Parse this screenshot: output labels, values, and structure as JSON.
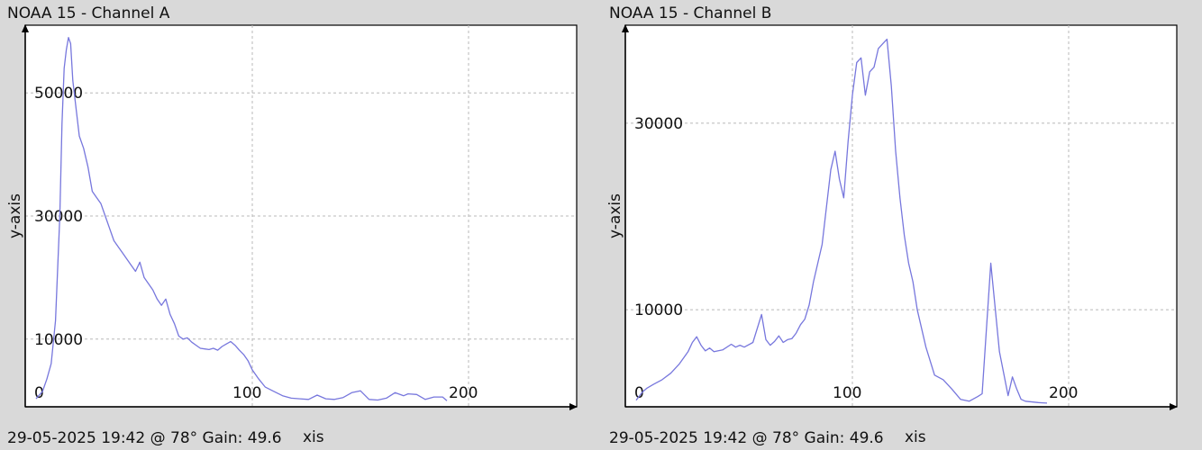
{
  "chart_data": [
    {
      "type": "line",
      "title": "NOAA 15 - Channel A",
      "footer": "29-05-2025 19:42 @ 78° Gain: 49.6",
      "xlabel": "xis",
      "ylabel": "y-axis",
      "xlim": [
        -5,
        250
      ],
      "ylim": [
        -1000,
        61000
      ],
      "xticks": [
        0,
        100,
        200
      ],
      "yticks": [
        10000,
        30000,
        50000
      ],
      "series_color": "#7777dd",
      "grid": true,
      "series": [
        {
          "x": [
            0,
            3,
            5,
            7,
            9,
            11,
            12,
            13,
            14,
            15,
            16,
            17,
            18,
            20,
            22,
            24,
            26,
            28,
            30,
            32,
            34,
            36,
            38,
            40,
            42,
            44,
            46,
            48,
            50,
            52,
            54,
            56,
            58,
            60,
            62,
            64,
            66,
            68,
            70,
            72,
            74,
            76,
            78,
            80,
            82,
            84,
            86,
            88,
            90,
            92,
            94,
            96,
            98,
            100,
            103,
            106,
            110,
            114,
            118,
            122,
            126,
            130,
            134,
            138,
            142,
            146,
            150,
            154,
            158,
            162,
            166,
            170,
            172,
            176,
            180,
            184,
            188,
            190
          ],
          "y": [
            300,
            1500,
            3500,
            6000,
            13000,
            30000,
            45000,
            54000,
            57000,
            59000,
            58000,
            52000,
            49000,
            43000,
            41000,
            38000,
            34000,
            33000,
            32000,
            30000,
            28000,
            26000,
            25000,
            24000,
            23000,
            22000,
            21000,
            22500,
            20000,
            19000,
            18000,
            16500,
            15500,
            16500,
            14000,
            12500,
            10500,
            10000,
            10200,
            9500,
            9000,
            8500,
            8400,
            8300,
            8500,
            8200,
            8800,
            9200,
            9600,
            9000,
            8200,
            7500,
            6500,
            5000,
            3500,
            2200,
            1500,
            800,
            400,
            300,
            200,
            900,
            300,
            200,
            500,
            1300,
            1600,
            200,
            100,
            400,
            1300,
            800,
            1100,
            1000,
            200,
            600,
            600,
            0
          ]
        }
      ]
    },
    {
      "type": "line",
      "title": "NOAA 15 - Channel B",
      "footer": "29-05-2025 19:42 @ 78° Gain: 49.6",
      "xlabel": "xis",
      "ylabel": "y-axis",
      "xlim": [
        -5,
        250
      ],
      "ylim": [
        -400,
        40500
      ],
      "xticks": [
        0,
        100,
        200
      ],
      "yticks": [
        10000,
        30000
      ],
      "series_color": "#7777dd",
      "grid": true,
      "series": [
        {
          "x": [
            0,
            3,
            5,
            8,
            12,
            16,
            20,
            24,
            26,
            28,
            30,
            32,
            34,
            36,
            40,
            44,
            46,
            48,
            50,
            54,
            58,
            60,
            62,
            64,
            66,
            68,
            70,
            72,
            74,
            76,
            78,
            80,
            82,
            86,
            90,
            92,
            94,
            96,
            98,
            100,
            102,
            104,
            106,
            108,
            110,
            112,
            114,
            116,
            118,
            120,
            122,
            124,
            126,
            128,
            130,
            134,
            138,
            142,
            146,
            150,
            154,
            158,
            160,
            164,
            168,
            172,
            174,
            176,
            178,
            180,
            182,
            184,
            186,
            188,
            190
          ],
          "y": [
            300,
            1200,
            1600,
            2000,
            2500,
            3200,
            4200,
            5500,
            6500,
            7100,
            6200,
            5600,
            5900,
            5500,
            5700,
            6300,
            6000,
            6200,
            6000,
            6500,
            9500,
            6800,
            6200,
            6600,
            7200,
            6500,
            6800,
            6900,
            7500,
            8400,
            9000,
            10500,
            13000,
            17000,
            25000,
            27000,
            24000,
            22000,
            28000,
            33000,
            36500,
            37000,
            33000,
            35500,
            36000,
            38000,
            38500,
            39000,
            34000,
            27000,
            22000,
            18000,
            15000,
            13000,
            10000,
            6000,
            3000,
            2500,
            1500,
            400,
            200,
            700,
            1000,
            15000,
            5500,
            800,
            2800,
            1500,
            400,
            200,
            150,
            100,
            50,
            20,
            0
          ]
        }
      ]
    }
  ]
}
